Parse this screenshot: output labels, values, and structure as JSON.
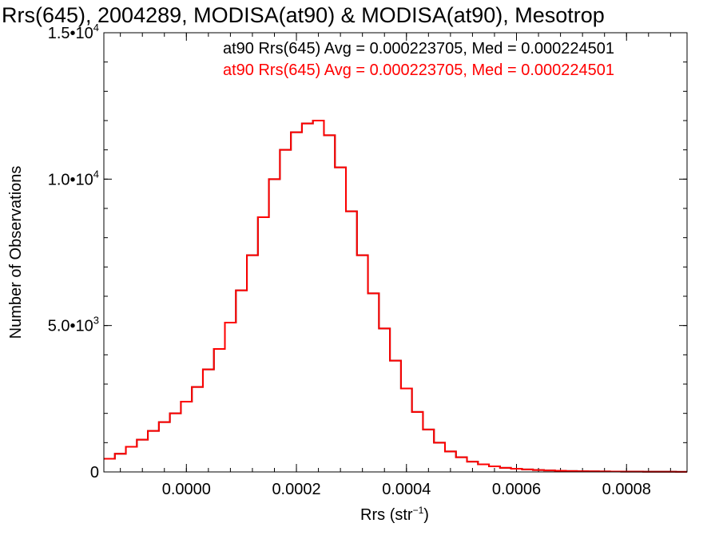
{
  "chart_data": {
    "type": "histogram-step",
    "title": "Rrs(645), 2004289, MODISA(at90) & MODISA(at90), Mesotrop",
    "xlabel": {
      "base": "Rrs (str",
      "superscript": "−1",
      "suffix": ")"
    },
    "ylabel": "Number of Observations",
    "xlim": [
      -0.00015,
      0.00091
    ],
    "ylim": [
      0,
      15000
    ],
    "x_ticks": [
      {
        "value": 0.0,
        "label": "0.0000"
      },
      {
        "value": 0.0002,
        "label": "0.0002"
      },
      {
        "value": 0.0004,
        "label": "0.0004"
      },
      {
        "value": 0.0006,
        "label": "0.0006"
      },
      {
        "value": 0.0008,
        "label": "0.0008"
      }
    ],
    "y_ticks": [
      {
        "value": 0,
        "mantissa": "0",
        "exponent": ""
      },
      {
        "value": 5000,
        "mantissa": "5.0•10",
        "exponent": "3"
      },
      {
        "value": 10000,
        "mantissa": "1.0•10",
        "exponent": "4"
      },
      {
        "value": 15000,
        "mantissa": "1.5•10",
        "exponent": "4"
      }
    ],
    "grid": false,
    "annotations": [
      {
        "text": "at90 Rrs(645) Avg = 0.000223705, Med = 0.000224501",
        "color": "#000000"
      },
      {
        "text": "at90 Rrs(645) Avg = 0.000223705, Med = 0.000224501",
        "color": "#ff0000"
      }
    ],
    "series": [
      {
        "color": "#000000"
      },
      {
        "color": "#ff0000"
      }
    ],
    "x": [
      -0.00015,
      -0.00013,
      -0.00011,
      -9e-05,
      -7e-05,
      -5e-05,
      -3e-05,
      -1e-05,
      1e-05,
      3e-05,
      5e-05,
      7e-05,
      9e-05,
      0.00011,
      0.00013,
      0.00015,
      0.00017,
      0.00019,
      0.00021,
      0.00023,
      0.00025,
      0.00027,
      0.00029,
      0.00031,
      0.00033,
      0.00035,
      0.00037,
      0.00039,
      0.00041,
      0.00043,
      0.00045,
      0.00047,
      0.00049,
      0.00051,
      0.00053,
      0.00055,
      0.00057,
      0.00059,
      0.00061,
      0.00063,
      0.00065,
      0.00067,
      0.00069,
      0.00071,
      0.00073,
      0.00075,
      0.00077,
      0.00079,
      0.00081,
      0.00083,
      0.00085,
      0.00087,
      0.00089,
      0.00091
    ],
    "y": [
      450,
      620,
      860,
      1100,
      1400,
      1700,
      2000,
      2400,
      2900,
      3500,
      4200,
      5100,
      6200,
      7400,
      8700,
      10000,
      11000,
      11600,
      11900,
      12000,
      11500,
      10400,
      8900,
      7400,
      6100,
      4900,
      3800,
      2850,
      2050,
      1450,
      1000,
      700,
      500,
      350,
      260,
      190,
      140,
      110,
      85,
      65,
      50,
      40,
      32,
      25,
      20,
      16,
      13,
      11,
      9,
      8,
      7,
      6,
      5,
      5
    ]
  }
}
